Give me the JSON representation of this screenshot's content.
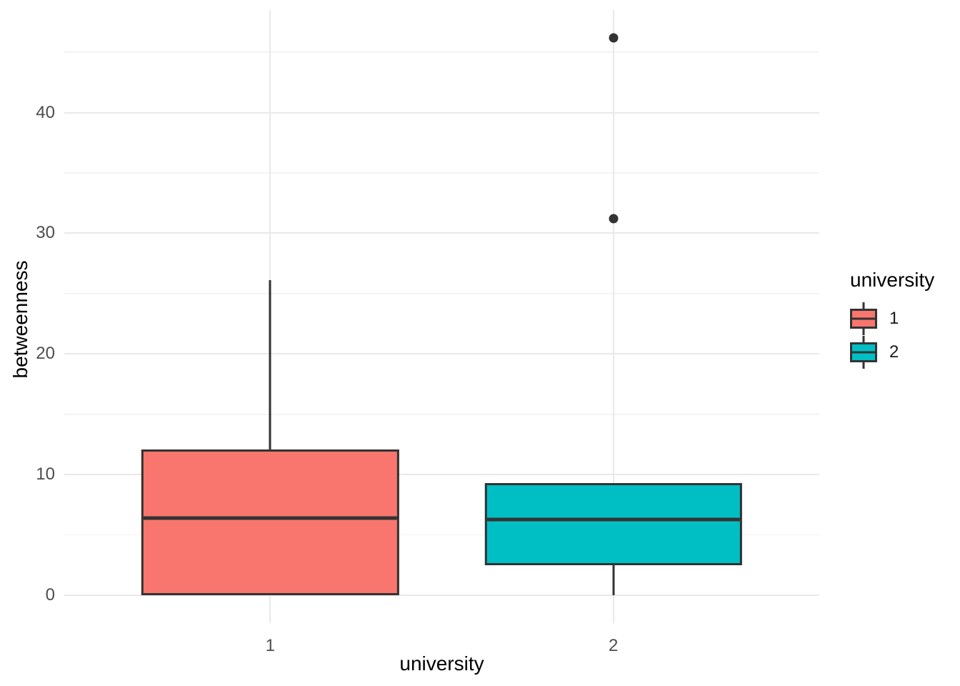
{
  "chart_data": {
    "type": "boxplot",
    "xlabel": "university",
    "ylabel": "betweenness",
    "categories": [
      "1",
      "2"
    ],
    "series": [
      {
        "name": "1",
        "color": "#F8766D",
        "min": 0,
        "q1": 0,
        "median": 6.4,
        "q3": 12.1,
        "max": 26.1,
        "outliers": []
      },
      {
        "name": "2",
        "color": "#00BFC4",
        "min": 0,
        "q1": 2.5,
        "median": 6.3,
        "q3": 9.3,
        "max": 9.3,
        "outliers": [
          31.2,
          46.2
        ]
      }
    ],
    "y_ticks": [
      0,
      10,
      20,
      30,
      40
    ],
    "y_minor_ticks": [
      5,
      15,
      25,
      35,
      45
    ],
    "ylim": [
      -2.3,
      48.5
    ],
    "xlim": [
      0.4,
      2.6
    ],
    "box_width_ratio": 0.75,
    "grid": true,
    "legend": {
      "title": "university",
      "position": "right",
      "entries": [
        {
          "label": "1",
          "color": "#F8766D"
        },
        {
          "label": "2",
          "color": "#00BFC4"
        }
      ]
    },
    "style": {
      "stroke": "#333333",
      "outlier_color": "#333333",
      "grid_major": "#E9E9E9",
      "grid_minor": "#F3F3F3",
      "tick_label_color": "#4D4D4D",
      "title_color": "#000000",
      "background": "#FFFFFF"
    }
  }
}
